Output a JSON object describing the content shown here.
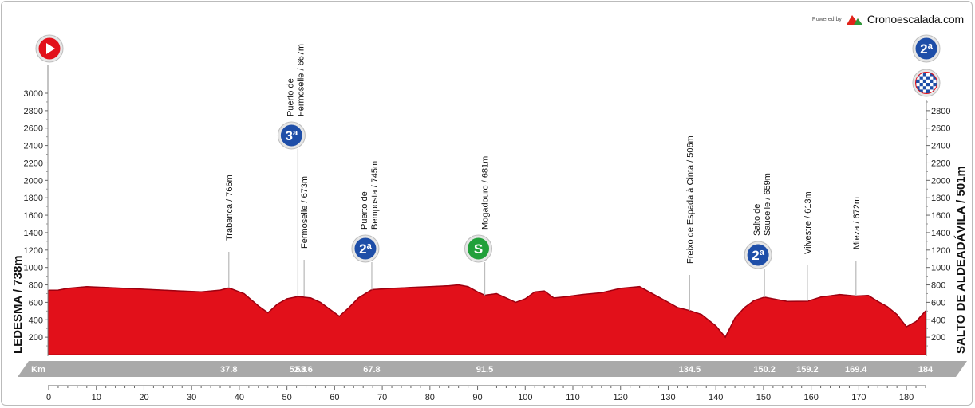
{
  "brand": {
    "powered_by": "Powered by",
    "name": "Cronoescalada.com",
    "logo_icon": "mountain-logo-icon",
    "colors": {
      "mountain_red": "#e2231a",
      "mountain_green": "#2d9a3c"
    }
  },
  "chart_data": {
    "type": "area",
    "title": "",
    "xlabel": "Km",
    "ylabel": "",
    "xlim": [
      0,
      184
    ],
    "ylim": [
      0,
      3100
    ],
    "x_ticks": [
      0,
      10,
      20,
      30,
      40,
      50,
      60,
      70,
      80,
      90,
      100,
      110,
      120,
      130,
      140,
      150,
      160,
      170,
      180
    ],
    "y_ticks_left": [
      200,
      400,
      600,
      800,
      1000,
      1200,
      1400,
      1600,
      1800,
      2000,
      2200,
      2400,
      2600,
      2800,
      3000
    ],
    "y_ticks_right": [
      200,
      400,
      600,
      800,
      1000,
      1200,
      1400,
      1600,
      1800,
      2000,
      2200,
      2400,
      2600,
      2800
    ],
    "grid": false,
    "fill_color": "#e2101a",
    "start_label": "LEDESMA / 738m",
    "finish_label": "SALTO DE ALDEADÁVILA / 501m",
    "series": [
      {
        "x": [
          0,
          2,
          4,
          8,
          12,
          16,
          20,
          24,
          28,
          32,
          36,
          37.8,
          41,
          44,
          46,
          48,
          50,
          52.3,
          55,
          57,
          59,
          61,
          63,
          65,
          67.8,
          72,
          76,
          80,
          84,
          86,
          88,
          90,
          91.5,
          94,
          96,
          98,
          100,
          102,
          104,
          106,
          108,
          112,
          116,
          120,
          124,
          126,
          128,
          130,
          132,
          134.5,
          137,
          140,
          142,
          144,
          146,
          148,
          150.2,
          152,
          155,
          159.2,
          162,
          166,
          169.4,
          172,
          174,
          176,
          178,
          180,
          182,
          184
        ],
        "y": [
          738,
          740,
          760,
          780,
          770,
          760,
          750,
          740,
          730,
          720,
          740,
          766,
          700,
          560,
          480,
          580,
          640,
          667,
          650,
          600,
          520,
          440,
          540,
          650,
          745,
          760,
          770,
          780,
          790,
          800,
          780,
          720,
          681,
          700,
          650,
          600,
          640,
          720,
          730,
          650,
          660,
          690,
          710,
          760,
          780,
          720,
          660,
          600,
          540,
          506,
          460,
          330,
          200,
          420,
          540,
          620,
          659,
          640,
          610,
          613,
          660,
          690,
          672,
          680,
          610,
          550,
          460,
          320,
          380,
          501
        ]
      }
    ],
    "checkpoints": [
      {
        "km": 37.8,
        "name": "Trabanca / 766m"
      },
      {
        "km": 52.3,
        "name": "Puerto de Fermoselle / 667m",
        "badge": "3ª",
        "kind": "climb"
      },
      {
        "km": 53.6,
        "name": "Fermoselle / 673m"
      },
      {
        "km": 67.8,
        "name": "Puerto de Bemposta / 745m",
        "badge": "2ª",
        "kind": "climb"
      },
      {
        "km": 91.5,
        "name": "Mogadouro / 681m",
        "badge": "S",
        "kind": "sprint"
      },
      {
        "km": 134.5,
        "name": "Freixo de Espada à Cinta / 506m"
      },
      {
        "km": 150.2,
        "name": "Salto de Saucelle / 659m",
        "badge": "2ª",
        "kind": "climb"
      },
      {
        "km": 159.2,
        "name": "Vilvestre / 613m"
      },
      {
        "km": 169.4,
        "name": "Mieza / 672m"
      }
    ],
    "km_strip_labels": [
      {
        "km": 37.8,
        "text": "37.8"
      },
      {
        "km": 52.3,
        "text": "52.3"
      },
      {
        "km": 53.6,
        "text": "53.6"
      },
      {
        "km": 67.8,
        "text": "67.8"
      },
      {
        "km": 91.5,
        "text": "91.5"
      },
      {
        "km": 134.5,
        "text": "134.5"
      },
      {
        "km": 150.2,
        "text": "150.2"
      },
      {
        "km": 159.2,
        "text": "159.2"
      },
      {
        "km": 169.4,
        "text": "169.4"
      },
      {
        "km": 184,
        "text": "184"
      }
    ],
    "finish_badge": "2ª",
    "icons": {
      "start": "start-play-icon",
      "finish": "finish-checkered-icon"
    }
  }
}
